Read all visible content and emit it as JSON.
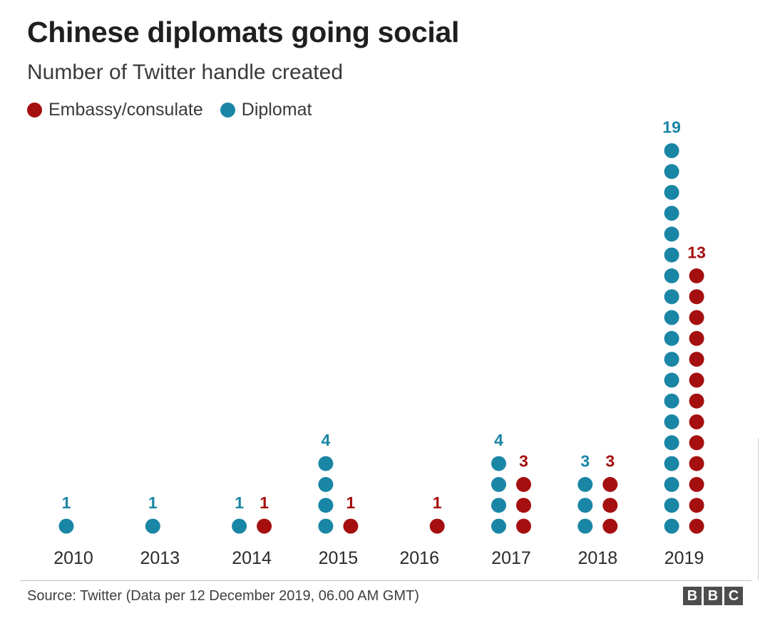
{
  "title": "Chinese diplomats going social",
  "subtitle": "Number of Twitter handle created",
  "colors": {
    "embassy": "#a50f0f",
    "diplomat": "#1a86a5"
  },
  "source": "Source: Twitter (Data per 12 December 2019, 06.00 AM GMT)",
  "logo": [
    "B",
    "B",
    "C"
  ],
  "chart_data": {
    "type": "scatter",
    "title": "Chinese diplomats going social",
    "subtitle": "Number of Twitter handle created",
    "categories": [
      "2010",
      "2013",
      "2014",
      "2015",
      "2016",
      "2017",
      "2018",
      "2019"
    ],
    "series": [
      {
        "name": "Diplomat",
        "key": "diplomat",
        "values": [
          1,
          1,
          1,
          4,
          0,
          4,
          3,
          19
        ]
      },
      {
        "name": "Embassy/consulate",
        "key": "embassy",
        "values": [
          0,
          0,
          1,
          1,
          1,
          3,
          3,
          13
        ]
      }
    ],
    "legend": [
      {
        "name": "Embassy/consulate",
        "key": "embassy"
      },
      {
        "name": "Diplomat",
        "key": "diplomat"
      }
    ],
    "legend_position": "top-left",
    "grid": false
  }
}
